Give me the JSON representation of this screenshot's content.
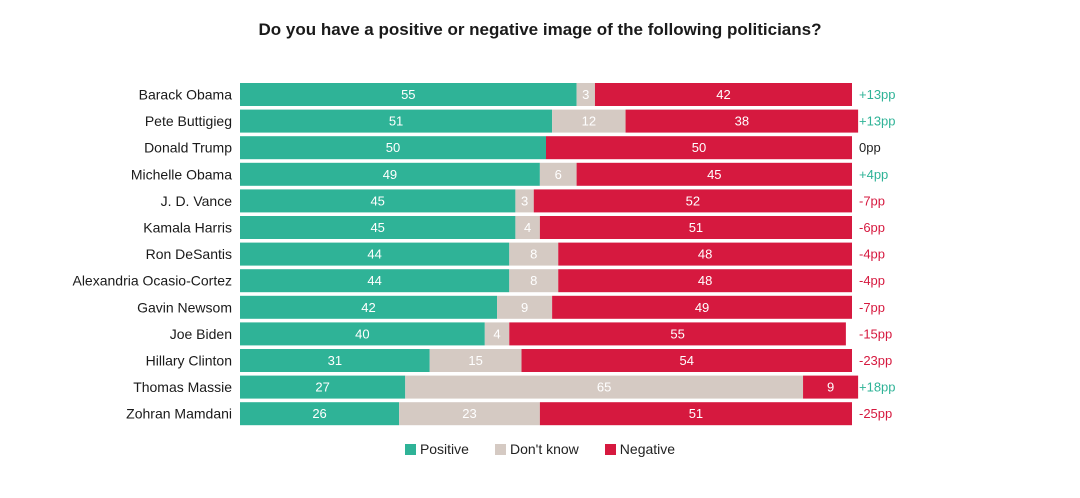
{
  "colors": {
    "positive": "#2fb397",
    "dont_know": "#d5cac3",
    "negative": "#d6193f",
    "net_positive": "#2fb397",
    "net_zero": "#222222",
    "net_negative": "#d6193f"
  },
  "chart_data": {
    "type": "bar",
    "orientation": "horizontal-stacked-100",
    "title": "Do you have a positive or negative image of the following politicians?",
    "categories": [
      "Barack Obama",
      "Pete Buttigieg",
      "Donald Trump",
      "Michelle Obama",
      "J. D. Vance",
      "Kamala Harris",
      "Ron DeSantis",
      "Alexandria Ocasio-Cortez",
      "Gavin Newsom",
      "Joe Biden",
      "Hillary Clinton",
      "Thomas Massie",
      "Zohran Mamdani"
    ],
    "series": [
      {
        "name": "Positive",
        "values": [
          55,
          51,
          50,
          49,
          45,
          45,
          44,
          44,
          42,
          40,
          31,
          27,
          26
        ]
      },
      {
        "name": "Don't know",
        "values": [
          3,
          12,
          0,
          6,
          3,
          4,
          8,
          8,
          9,
          4,
          15,
          65,
          23
        ]
      },
      {
        "name": "Negative",
        "values": [
          42,
          38,
          50,
          45,
          52,
          51,
          48,
          48,
          49,
          55,
          54,
          9,
          51
        ]
      }
    ],
    "net_labels": [
      "+13pp",
      "+13pp",
      "0pp",
      "+4pp",
      "-7pp",
      "-6pp",
      "-4pp",
      "-4pp",
      "-7pp",
      "-15pp",
      "-23pp",
      "+18pp",
      "-25pp"
    ],
    "xlim": [
      0,
      100
    ],
    "legend_position": "bottom"
  }
}
